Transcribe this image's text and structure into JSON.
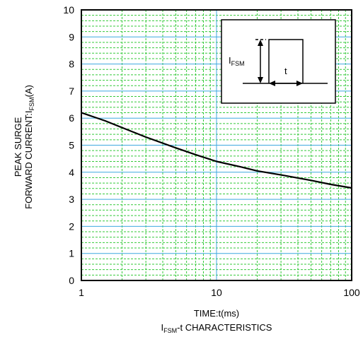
{
  "chart_data": {
    "type": "line",
    "xscale": "log",
    "xlim": [
      1,
      100
    ],
    "ylim": [
      0,
      10
    ],
    "grid": true,
    "x_ticks": [
      "1",
      "10",
      "100"
    ],
    "y_ticks": [
      "0",
      "1",
      "2",
      "3",
      "4",
      "5",
      "6",
      "7",
      "8",
      "9",
      "10"
    ],
    "ylabel_line1": "PEAK SURGE",
    "ylabel_line2_main": "FORWARD CURRENT:I",
    "ylabel_line2_sub": "FSM",
    "ylabel_line2_end": "(A)",
    "xlabel": "TIME:t(ms)",
    "caption_main": "I",
    "caption_sub": "FSM",
    "caption_end": "-t CHARACTERISTICS",
    "inset": {
      "label_main": "I",
      "label_sub": "FSM",
      "t_label": "t"
    },
    "series": [
      {
        "x": [
          1,
          1.5,
          2,
          3,
          5,
          7,
          10,
          15,
          20,
          30,
          50,
          70,
          100
        ],
        "values": [
          6.2,
          5.9,
          5.65,
          5.3,
          4.9,
          4.65,
          4.4,
          4.2,
          4.05,
          3.9,
          3.7,
          3.55,
          3.42
        ]
      }
    ],
    "colors": {
      "major_grid": "#3fa9e0",
      "minor_grid": "#35c93a",
      "curve": "#000000"
    }
  }
}
